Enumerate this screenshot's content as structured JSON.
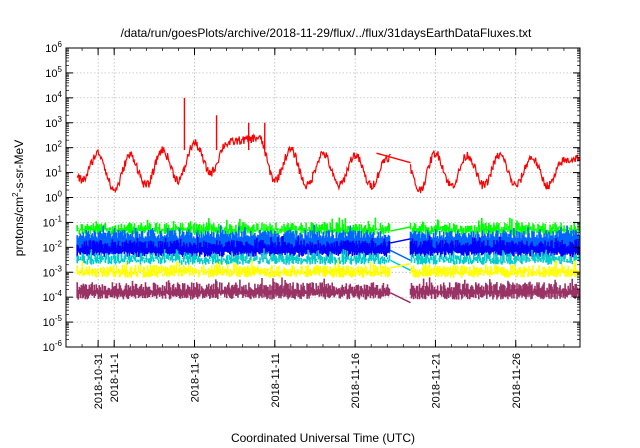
{
  "chart_data": {
    "type": "line",
    "title": "/data/run/goesPlots/archive/2018-11-29/flux/../flux/31daysEarthDataFluxes.txt",
    "xlabel": "Coordinated Universal Time (UTC)",
    "ylabel": "protons/cm2-s-sr-MeV",
    "y_scale": "log",
    "ylim": [
      1e-06,
      1000000.0
    ],
    "xlim": [
      "2018-10-29",
      "2018-11-30"
    ],
    "x_ticks": [
      "2018-10-31",
      "2018-11-1",
      "2018-11-6",
      "2018-11-11",
      "2018-11-16",
      "2018-11-21",
      "2018-11-26"
    ],
    "y_ticks": [
      "10-6",
      "10-5",
      "10-4",
      "10-3",
      "10-2",
      "10-1",
      "100",
      "101",
      "102",
      "103",
      "104",
      "105",
      "106"
    ],
    "grid": true,
    "legend": "none",
    "data_gap": [
      "2018-11-18",
      "2018-11-19"
    ],
    "series": [
      {
        "color": "#ff0000",
        "x": [
          "2018-10-29",
          "2018-10-30",
          "2018-10-31",
          "2018-11-01",
          "2018-11-02",
          "2018-11-03",
          "2018-11-04",
          "2018-11-05",
          "2018-11-06",
          "2018-11-07",
          "2018-11-08",
          "2018-11-09",
          "2018-11-10",
          "2018-11-11",
          "2018-11-12",
          "2018-11-13",
          "2018-11-14",
          "2018-11-15",
          "2018-11-16",
          "2018-11-17",
          "2018-11-18",
          "2018-11-19",
          "2018-11-20",
          "2018-11-21",
          "2018-11-22",
          "2018-11-23",
          "2018-11-24",
          "2018-11-25",
          "2018-11-26",
          "2018-11-27",
          "2018-11-28",
          "2018-11-29",
          "2018-11-30"
        ],
        "values": [
          30,
          5,
          60,
          2,
          50,
          3,
          80,
          5,
          150,
          10,
          150,
          200,
          250,
          5,
          80,
          3,
          60,
          3,
          50,
          3,
          40,
          80,
          2,
          60,
          3,
          50,
          3,
          50,
          3,
          40,
          3,
          30,
          40
        ],
        "spikes": [
          [
            "2018-11-05",
            10000
          ],
          [
            "2018-11-07",
            2000
          ],
          [
            "2018-11-09",
            1000
          ],
          [
            "2018-11-10",
            1000
          ]
        ]
      },
      {
        "color": "#00ff00",
        "band": [
          0.03,
          0.1
        ],
        "gap_value": 0.03
      },
      {
        "color": "#0066ff",
        "band": [
          0.005,
          0.05
        ],
        "gap_value": 0.005
      },
      {
        "color": "#0000ff",
        "band": [
          0.004,
          0.02
        ],
        "gap_value": 0.01
      },
      {
        "color": "#00cccc",
        "band": [
          0.002,
          0.006
        ],
        "gap_value": 0.002
      },
      {
        "color": "#ffff00",
        "band": [
          0.0006,
          0.002
        ],
        "gap_value": 0.001
      },
      {
        "color": "#993366",
        "band": [
          8e-05,
          0.0004
        ],
        "gap_value": 0.0001
      }
    ]
  }
}
